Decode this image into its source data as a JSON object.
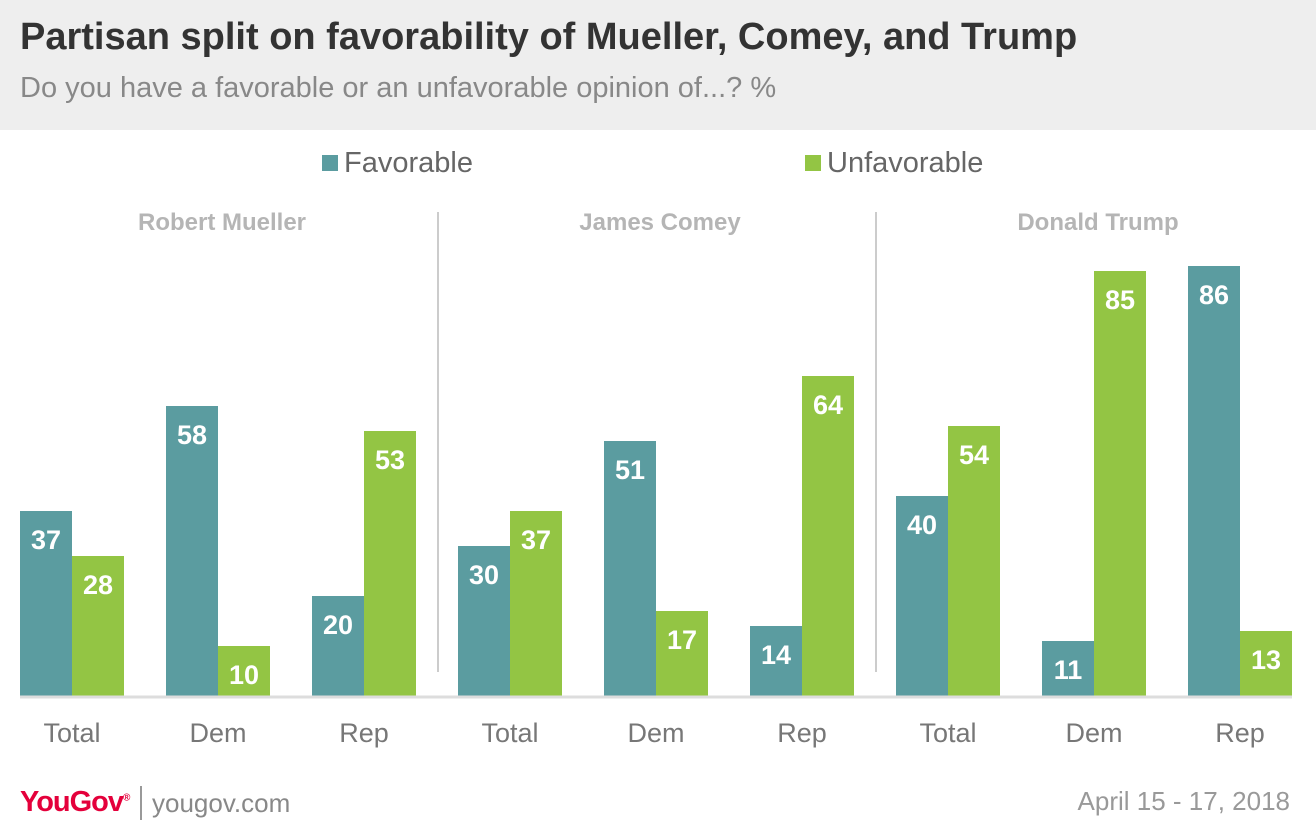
{
  "title": "Partisan split on favorability of Mueller, Comey, and Trump",
  "subtitle": "Do you have a favorable or an unfavorable opinion of...? %",
  "legend": [
    {
      "name": "Favorable",
      "color": "#5b9ca0"
    },
    {
      "name": "Unfavorable",
      "color": "#93c544"
    }
  ],
  "footer": {
    "brand": "YouGov",
    "brand_mark": "®",
    "site": "yougov.com",
    "date": "April 15 - 17, 2018"
  },
  "chart_data": {
    "type": "bar",
    "ylim": [
      0,
      100
    ],
    "grid": false,
    "legend_position": "top-center",
    "value_labels": true,
    "categories": [
      "Total",
      "Dem",
      "Rep"
    ],
    "panels": [
      {
        "title": "Robert Mueller",
        "series": [
          {
            "name": "Favorable",
            "values": [
              37,
              58,
              20
            ]
          },
          {
            "name": "Unfavorable",
            "values": [
              28,
              10,
              53
            ]
          }
        ]
      },
      {
        "title": "James Comey",
        "series": [
          {
            "name": "Favorable",
            "values": [
              30,
              51,
              14
            ]
          },
          {
            "name": "Unfavorable",
            "values": [
              37,
              17,
              64
            ]
          }
        ]
      },
      {
        "title": "Donald Trump",
        "series": [
          {
            "name": "Favorable",
            "values": [
              40,
              11,
              86
            ]
          },
          {
            "name": "Unfavorable",
            "values": [
              54,
              85,
              13
            ]
          }
        ]
      }
    ]
  }
}
